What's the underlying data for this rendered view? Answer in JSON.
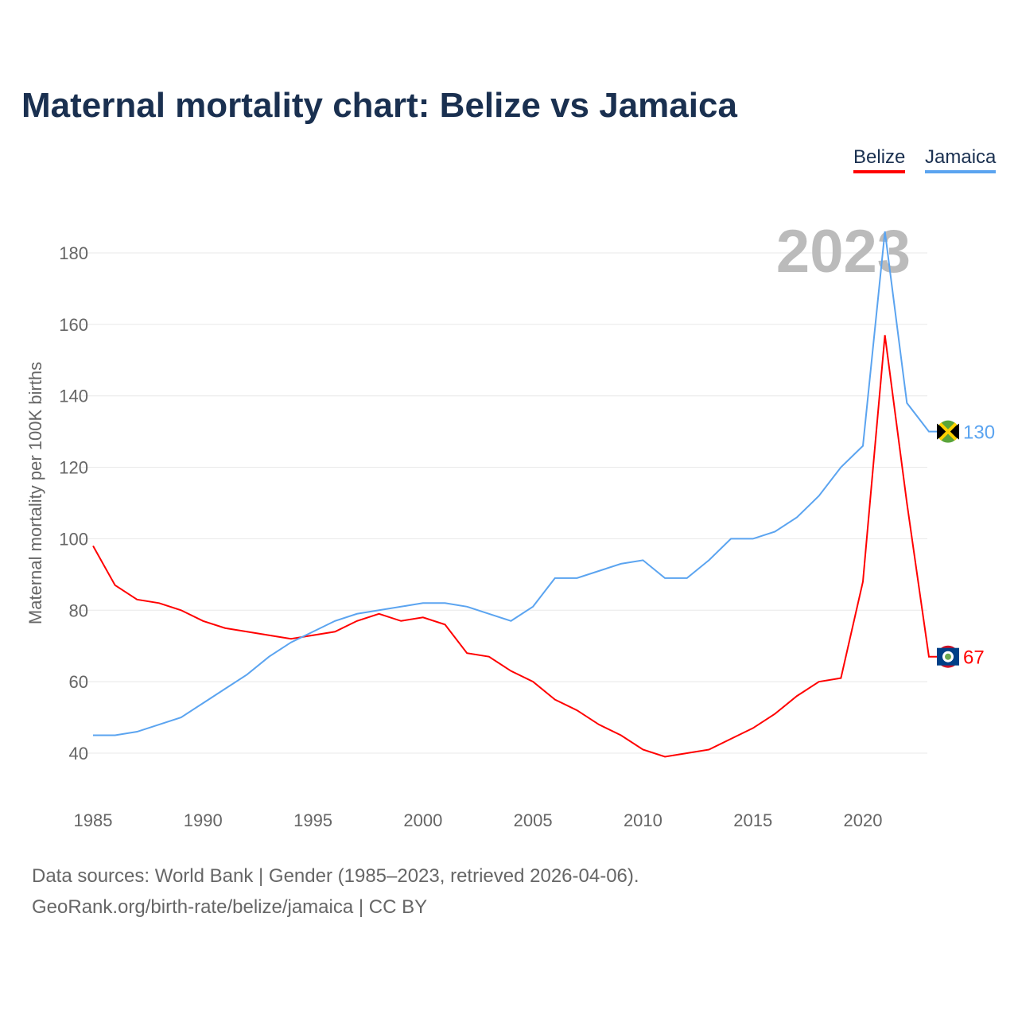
{
  "title": "Maternal mortality chart: Belize vs Jamaica",
  "footer": {
    "line1": "Data sources: World Bank | Gender (1985–2023, retrieved 2026-04-06).",
    "line2": "GeoRank.org/birth-rate/belize/jamaica | CC BY"
  },
  "chart_data": {
    "type": "line",
    "title": "Maternal mortality chart: Belize vs Jamaica",
    "xlabel": "",
    "ylabel": "Maternal mortality per 100K births",
    "year_label": "2023",
    "xlim": [
      1985,
      2023
    ],
    "ylim": [
      40,
      180
    ],
    "xticks": [
      "1985",
      "1990",
      "1995",
      "2000",
      "2005",
      "2010",
      "2015",
      "2020"
    ],
    "yticks": [
      "40",
      "60",
      "80",
      "100",
      "120",
      "140",
      "160",
      "180"
    ],
    "grid": true,
    "legend_placement": "top-right",
    "x": [
      1985,
      1986,
      1987,
      1988,
      1989,
      1990,
      1991,
      1992,
      1993,
      1994,
      1995,
      1996,
      1997,
      1998,
      1999,
      2000,
      2001,
      2002,
      2003,
      2004,
      2005,
      2006,
      2007,
      2008,
      2009,
      2010,
      2011,
      2012,
      2013,
      2014,
      2015,
      2016,
      2017,
      2018,
      2019,
      2020,
      2021,
      2022,
      2023
    ],
    "series": [
      {
        "name": "Belize",
        "color": "#ff0000",
        "end_label": "67",
        "flag": "belize-flag",
        "values": [
          98,
          87,
          83,
          82,
          80,
          77,
          75,
          74,
          73,
          72,
          73,
          74,
          77,
          79,
          77,
          78,
          76,
          68,
          67,
          63,
          60,
          55,
          52,
          48,
          45,
          41,
          39,
          40,
          41,
          44,
          47,
          51,
          56,
          60,
          61,
          88,
          157,
          110,
          67
        ]
      },
      {
        "name": "Jamaica",
        "color": "#5ba4f0",
        "end_label": "130",
        "flag": "jamaica-flag",
        "values": [
          45,
          45,
          46,
          48,
          50,
          54,
          58,
          62,
          67,
          71,
          74,
          77,
          79,
          80,
          81,
          82,
          82,
          81,
          79,
          77,
          81,
          89,
          89,
          91,
          93,
          94,
          89,
          89,
          94,
          100,
          100,
          102,
          106,
          112,
          120,
          126,
          186,
          138,
          130
        ]
      }
    ]
  }
}
